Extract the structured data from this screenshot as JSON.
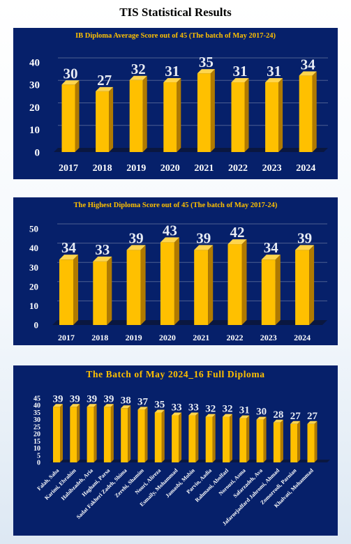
{
  "page_title": "TIS Statistical Results",
  "colors": {
    "panel_bg": "#06206a",
    "bar_front": "#ffc000",
    "bar_side": "#b07a00",
    "bar_top": "#ffd54d",
    "title_color": "#ffc000"
  },
  "chart_data": [
    {
      "type": "bar",
      "title": "IB Diploma Average Score out of 45 (The batch of May 2017-24)",
      "categories": [
        "2017",
        "2018",
        "2019",
        "2020",
        "2021",
        "2022",
        "2023",
        "2024"
      ],
      "values": [
        30,
        27,
        32,
        31,
        35,
        31,
        31,
        34
      ],
      "yticks": [
        0,
        10,
        20,
        30,
        40
      ],
      "ylim": [
        0,
        40
      ],
      "grid": true,
      "legend": "none"
    },
    {
      "type": "bar",
      "title": "The Highest Diploma Score out of 45 (The batch of May 2017-24)",
      "categories": [
        "2017",
        "2018",
        "2019",
        "2020",
        "2021",
        "2022",
        "2023",
        "2024"
      ],
      "values": [
        34,
        33,
        39,
        43,
        39,
        42,
        34,
        39
      ],
      "yticks": [
        0,
        10,
        20,
        30,
        40,
        50
      ],
      "ylim": [
        0,
        50
      ],
      "grid": true,
      "legend": "none"
    },
    {
      "type": "bar",
      "title": "The Batch of May 2024_16 Full Diploma",
      "categories": [
        "Falah, Saba",
        "Karimi, Ebrahim",
        "Habibzadeh, Aria",
        "Haghani, Parsa",
        "Sadat Fakheri Zadeh, Shima",
        "Zerehi, Shamim",
        "Nouri, Alireza",
        "Esmaily, Mohammad",
        "Jamasbi, Mobin",
        "Parvin, Aadia",
        "Rahmani, Abolfazl",
        "Norouzi, Asma",
        "Safarzadeh, Ava",
        "Jafarnejadfard Jahromi, Ahmad",
        "Zomorrodi, Parnian",
        "Khalvati, Mohammad"
      ],
      "values": [
        39,
        39,
        39,
        39,
        38,
        37,
        35,
        33,
        33,
        32,
        32,
        31,
        30,
        28,
        27,
        27
      ],
      "yticks": [
        0,
        5,
        10,
        15,
        20,
        25,
        30,
        35,
        40,
        45
      ],
      "ylim": [
        0,
        45
      ],
      "grid": false,
      "legend": "none"
    }
  ]
}
